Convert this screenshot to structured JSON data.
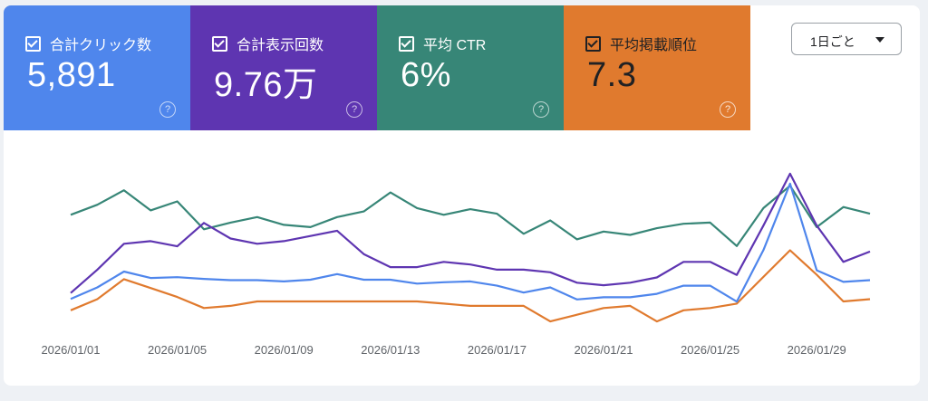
{
  "cards": {
    "clicks": {
      "label": "合計クリック数",
      "value": "5,891",
      "color": "#4f86ec"
    },
    "impressions": {
      "label": "合計表示回数",
      "value": "9.76万",
      "color": "#5e35b1"
    },
    "ctr": {
      "label": "平均 CTR",
      "value": "6%",
      "color": "#378677"
    },
    "position": {
      "label": "平均掲載順位",
      "value": "7.3",
      "color": "#e07a2e"
    }
  },
  "help_glyph": "?",
  "dropdown": {
    "label": "1日ごと"
  },
  "chart_data": {
    "type": "line",
    "x": [
      "2026/01/01",
      "2026/01/02",
      "2026/01/03",
      "2026/01/04",
      "2026/01/05",
      "2026/01/06",
      "2026/01/07",
      "2026/01/08",
      "2026/01/09",
      "2026/01/10",
      "2026/01/11",
      "2026/01/12",
      "2026/01/13",
      "2026/01/14",
      "2026/01/15",
      "2026/01/16",
      "2026/01/17",
      "2026/01/18",
      "2026/01/19",
      "2026/01/20",
      "2026/01/21",
      "2026/01/22",
      "2026/01/23",
      "2026/01/24",
      "2026/01/25",
      "2026/01/26",
      "2026/01/27",
      "2026/01/28",
      "2026/01/29",
      "2026/01/30",
      "2026/01/31"
    ],
    "xticks": [
      "2026/01/01",
      "2026/01/05",
      "2026/01/09",
      "2026/01/13",
      "2026/01/17",
      "2026/01/21",
      "2026/01/25",
      "2026/01/29"
    ],
    "xtick_indices": [
      0,
      4,
      8,
      12,
      16,
      20,
      24,
      28
    ],
    "series": [
      {
        "key": "ctr",
        "color": "#378677",
        "values": [
          33,
          42,
          55,
          37,
          45,
          20,
          26,
          31,
          24,
          22,
          31,
          36,
          53,
          39,
          33,
          38,
          34,
          16,
          28,
          11,
          18,
          15,
          21,
          25,
          26,
          5,
          39,
          59,
          22,
          40,
          34
        ]
      },
      {
        "key": "position",
        "color": "#e07a2e",
        "values": [
          82,
          87,
          96,
          92,
          88,
          83,
          84,
          86,
          86,
          86,
          86,
          86,
          86,
          86,
          85,
          84,
          84,
          84,
          77,
          80,
          83,
          84,
          77,
          82,
          83,
          85,
          97,
          109,
          98,
          86,
          87
        ]
      },
      {
        "key": "clicks",
        "color": "#4f86ec",
        "values": [
          37,
          64,
          101,
          86,
          88,
          84,
          81,
          81,
          78,
          82,
          95,
          82,
          82,
          73,
          76,
          78,
          68,
          52,
          64,
          36,
          41,
          41,
          49,
          68,
          68,
          31,
          151,
          306,
          104,
          77,
          81
        ]
      },
      {
        "key": "impressions",
        "color": "#5e35b1",
        "values": [
          68,
          77,
          87,
          88,
          86,
          95,
          89,
          87,
          88,
          90,
          92,
          83,
          78,
          78,
          80,
          79,
          77,
          77,
          76,
          72,
          71,
          72,
          74,
          80,
          80,
          75,
          94,
          114,
          94,
          80,
          84
        ]
      }
    ]
  }
}
